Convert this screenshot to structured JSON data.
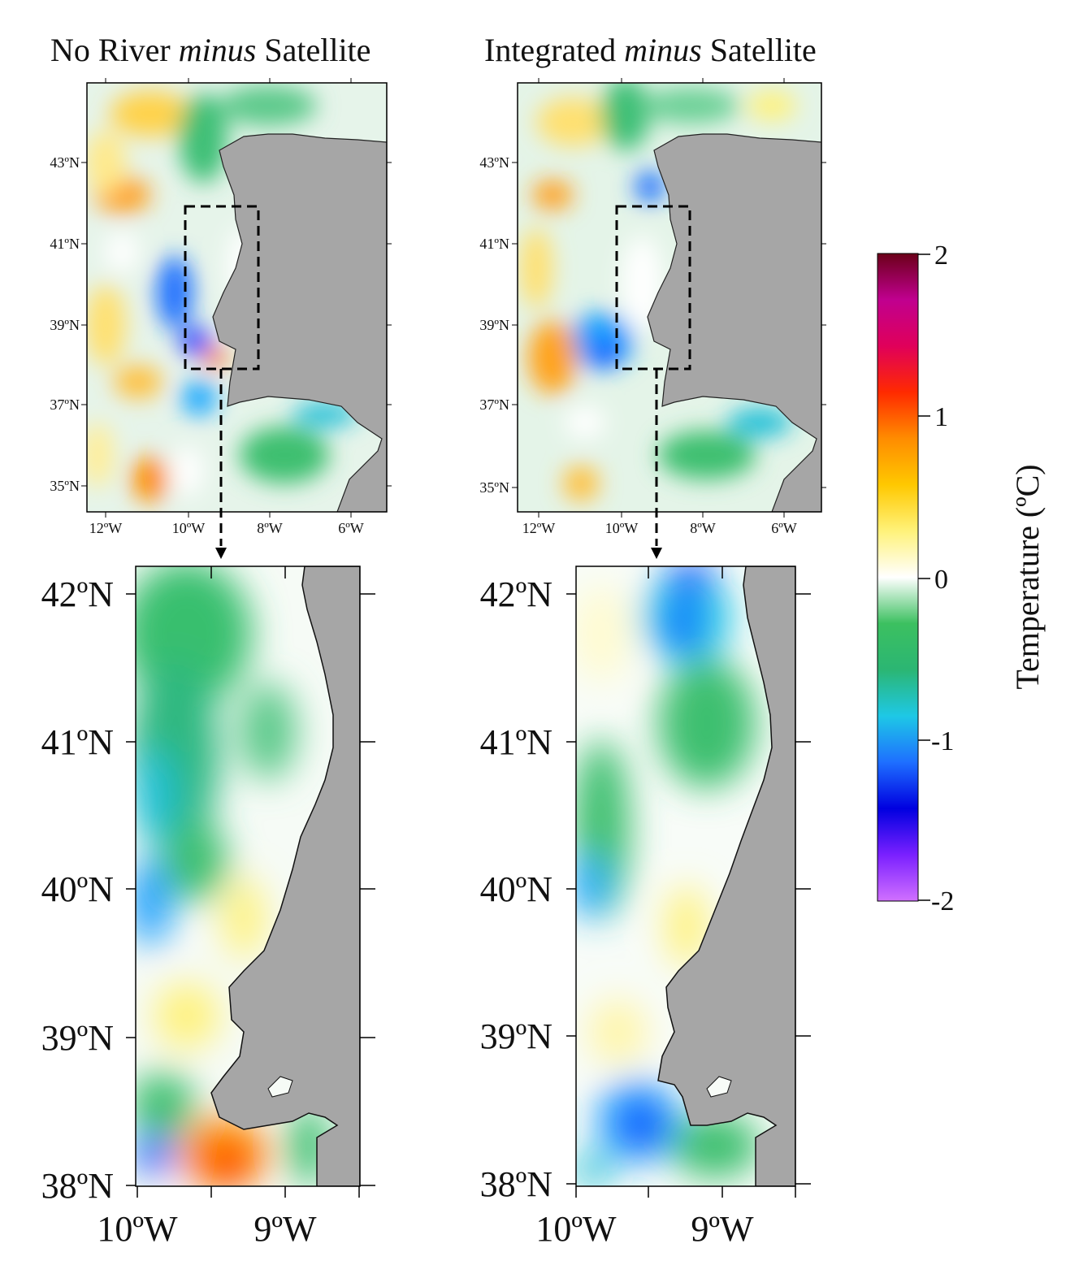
{
  "panels": {
    "top_left": {
      "title_pre": "No River ",
      "title_em": "minus",
      "title_post": " Satellite",
      "lat_labels": [
        "43ºN",
        "41ºN",
        "39ºN",
        "37ºN",
        "35ºN"
      ],
      "lon_labels": [
        "12ºW",
        "10ºW",
        "8ºW",
        "6ºW"
      ]
    },
    "top_right": {
      "title_pre": "Integrated ",
      "title_em": "minus",
      "title_post": " Satellite",
      "lat_labels": [
        "43ºN",
        "41ºN",
        "39ºN",
        "37ºN",
        "35ºN"
      ],
      "lon_labels": [
        "12ºW",
        "10ºW",
        "8ºW",
        "6ºW"
      ]
    },
    "bottom_left": {
      "lat_labels": [
        "42ºN",
        "41ºN",
        "40ºN",
        "39ºN",
        "38ºN"
      ],
      "lon_labels": [
        "10ºW",
        "9ºW"
      ]
    },
    "bottom_right": {
      "lat_labels": [
        "42ºN",
        "41ºN",
        "40ºN",
        "39ºN",
        "38ºN"
      ],
      "lon_labels": [
        "10ºW",
        "9ºW"
      ]
    }
  },
  "colorbar": {
    "label": "Temperature (ºC)",
    "ticks": [
      "2",
      "1",
      "0",
      "-1",
      "-2"
    ],
    "range": [
      -2,
      2
    ],
    "colors": [
      "#d070ff",
      "#7a20ff",
      "#0000e0",
      "#1e6fff",
      "#1ec8e6",
      "#2bb673",
      "#3cc060",
      "#ffffff",
      "#fff27a",
      "#ffc800",
      "#ff8c00",
      "#ff2a00",
      "#e0005a",
      "#c0008f",
      "#6b0019"
    ]
  },
  "colors": {
    "land": "#a6a6a6",
    "frame": "#000000"
  }
}
